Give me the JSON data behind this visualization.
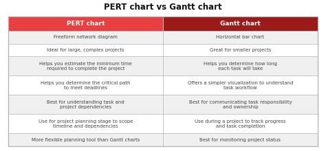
{
  "title": "PERT chart vs Gantt chart",
  "title_fontsize": 8.5,
  "col1_header": "PERT chart",
  "col2_header": "Gantt chart",
  "header_bg1": "#e84040",
  "header_bg2": "#9b1a1a",
  "header_text_color": "#ffffff",
  "row_bg_odd": "#f0f0f0",
  "row_bg_even": "#ffffff",
  "border_color": "#b0b0b0",
  "text_color": "#444444",
  "rows": [
    [
      "Freeform network diagram",
      "Horizontal bar chart"
    ],
    [
      "Ideal for large, complex projects",
      "Great for smaller projects"
    ],
    [
      "Helps you estimate the minimum time\nrequired to complete the project",
      "Helps you determine how long\neach task will take"
    ],
    [
      "Helps you determine the critical path\nto meet deadlines",
      "Offers a simpler visualization to understand\ntask workflow"
    ],
    [
      "Best for understanding task and\nproject dependencies",
      "Best for communicating task responsibility\nand ownership"
    ],
    [
      "Use for project planning stage to scope\ntimeline and dependencies",
      "Use during a project to track progress\nand task completion"
    ],
    [
      "More flexible planning tool than Gantt charts",
      "Best for monitoring project status"
    ]
  ],
  "figsize": [
    4.74,
    2.2
  ],
  "dpi": 100,
  "bg_color": "#ffffff"
}
